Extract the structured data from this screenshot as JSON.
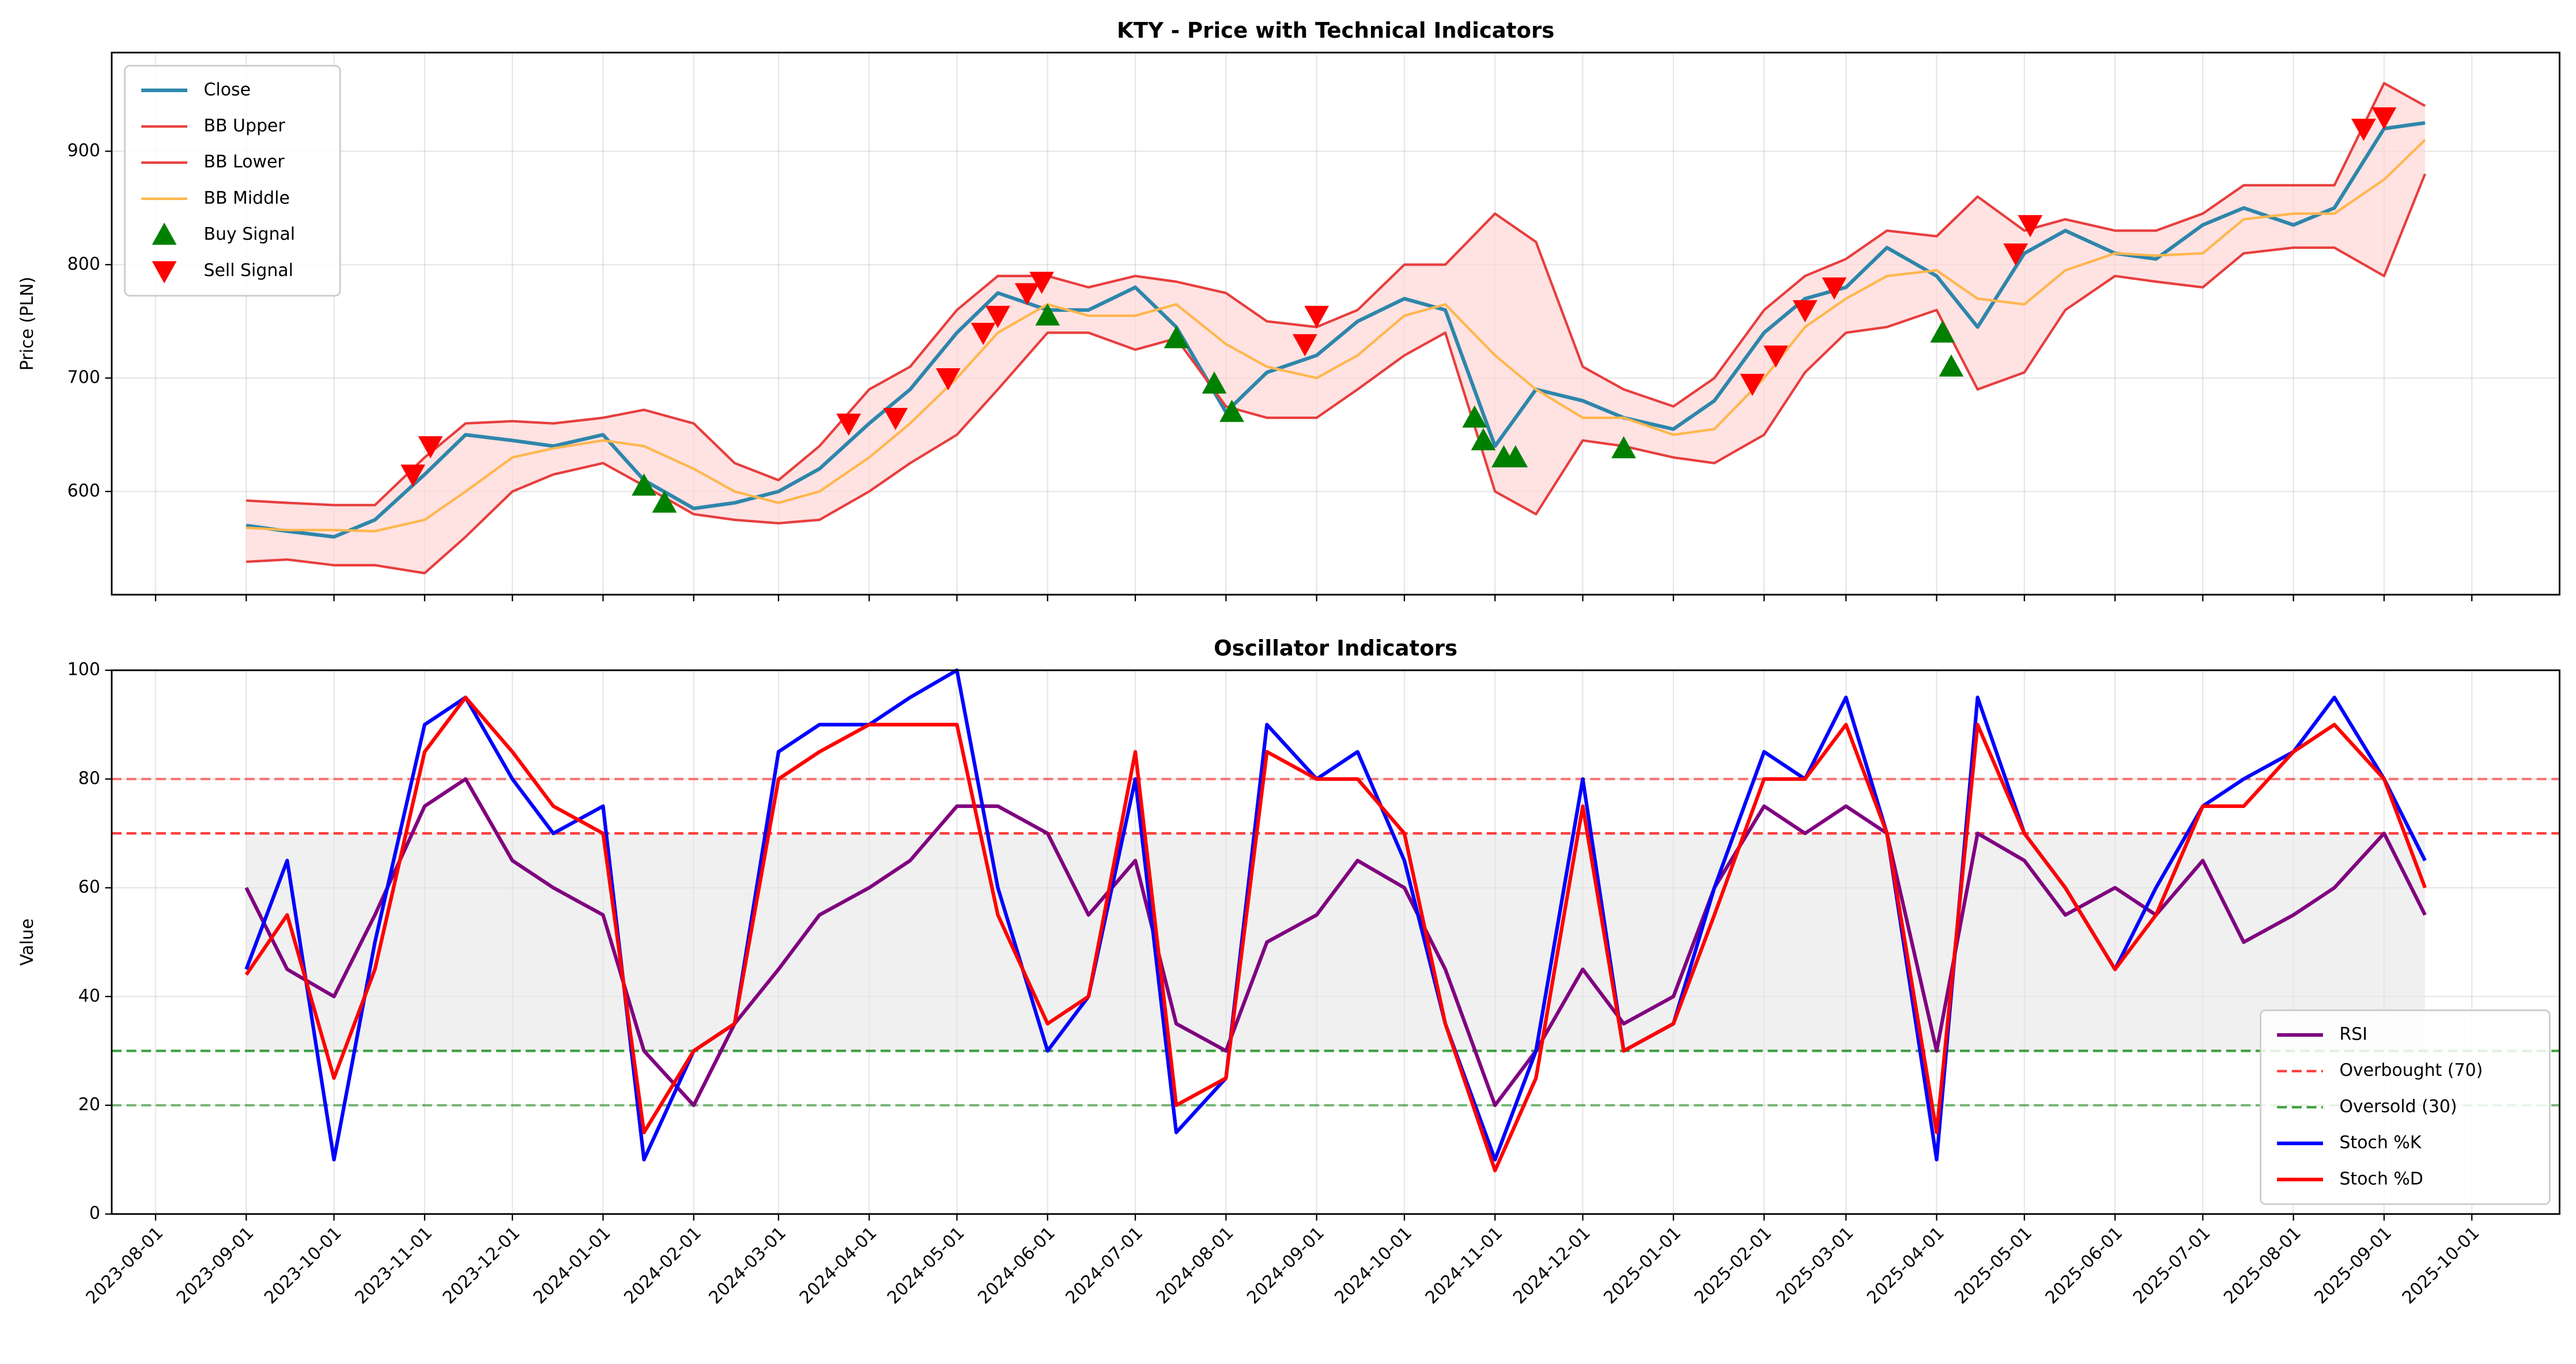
{
  "chart_data": [
    {
      "type": "line",
      "title": "KTY - Price with Technical Indicators",
      "ylabel": "Price (PLN)",
      "x": [
        "2023-09-01",
        "2023-09-15",
        "2023-10-01",
        "2023-10-15",
        "2023-11-01",
        "2023-11-15",
        "2023-12-01",
        "2023-12-15",
        "2024-01-01",
        "2024-01-15",
        "2024-02-01",
        "2024-02-15",
        "2024-03-01",
        "2024-03-15",
        "2024-04-01",
        "2024-04-15",
        "2024-05-01",
        "2024-05-15",
        "2024-06-01",
        "2024-06-15",
        "2024-07-01",
        "2024-07-15",
        "2024-08-01",
        "2024-08-15",
        "2024-09-01",
        "2024-09-15",
        "2024-10-01",
        "2024-10-15",
        "2024-11-01",
        "2024-11-15",
        "2024-12-01",
        "2024-12-15",
        "2025-01-01",
        "2025-01-15",
        "2025-02-01",
        "2025-02-15",
        "2025-03-01",
        "2025-03-15",
        "2025-04-01",
        "2025-04-15",
        "2025-05-01",
        "2025-05-15",
        "2025-06-01",
        "2025-06-15",
        "2025-07-01",
        "2025-07-15",
        "2025-08-01",
        "2025-08-15",
        "2025-09-01",
        "2025-09-15"
      ],
      "xlim": [
        "2023-07-17",
        "2025-10-31"
      ],
      "ylim": [
        509,
        987
      ],
      "yticks": [
        600,
        700,
        800,
        900
      ],
      "grid": true,
      "legend": "upper left",
      "fill_color": "#ffd6d6",
      "series": [
        {
          "name": "Close",
          "color": "#2e86ab",
          "width": 2.2,
          "values": [
            570,
            565,
            560,
            575,
            615,
            650,
            645,
            640,
            650,
            610,
            585,
            590,
            600,
            620,
            660,
            690,
            740,
            775,
            760,
            760,
            780,
            745,
            670,
            705,
            720,
            750,
            770,
            760,
            640,
            690,
            680,
            665,
            655,
            680,
            740,
            770,
            780,
            815,
            790,
            745,
            810,
            830,
            810,
            805,
            835,
            850,
            835,
            850,
            920,
            925
          ]
        },
        {
          "name": "BB Upper",
          "color": "#e83e3e",
          "width": 1.5,
          "values": [
            592,
            590,
            588,
            588,
            630,
            660,
            662,
            660,
            665,
            672,
            660,
            625,
            610,
            640,
            690,
            710,
            760,
            790,
            790,
            780,
            790,
            785,
            775,
            750,
            745,
            760,
            800,
            800,
            845,
            820,
            710,
            690,
            675,
            700,
            760,
            790,
            805,
            830,
            825,
            860,
            830,
            840,
            830,
            830,
            845,
            870,
            870,
            870,
            960,
            940
          ]
        },
        {
          "name": "BB Lower",
          "color": "#e83e3e",
          "width": 1.5,
          "values": [
            538,
            540,
            535,
            535,
            528,
            560,
            600,
            615,
            625,
            605,
            580,
            575,
            572,
            575,
            600,
            625,
            650,
            690,
            740,
            740,
            725,
            735,
            675,
            665,
            665,
            690,
            720,
            740,
            600,
            580,
            645,
            640,
            630,
            625,
            650,
            705,
            740,
            745,
            760,
            690,
            705,
            760,
            790,
            785,
            780,
            810,
            815,
            815,
            790,
            880
          ]
        },
        {
          "name": "BB Middle",
          "color": "#ffb74d",
          "width": 1.5,
          "values": [
            568,
            566,
            566,
            565,
            575,
            600,
            630,
            638,
            645,
            640,
            620,
            600,
            590,
            600,
            630,
            660,
            700,
            740,
            765,
            755,
            755,
            765,
            730,
            710,
            700,
            720,
            755,
            765,
            720,
            690,
            665,
            665,
            650,
            655,
            700,
            745,
            770,
            790,
            795,
            770,
            765,
            795,
            810,
            808,
            810,
            840,
            845,
            845,
            875,
            910
          ]
        },
        {
          "name": "Buy Signal",
          "color": "#008000",
          "marker": "triangle-up",
          "x": [
            "2024-01-15",
            "2024-01-22",
            "2024-06-01",
            "2024-07-15",
            "2024-07-28",
            "2024-08-03",
            "2024-10-25",
            "2024-10-28",
            "2024-11-04",
            "2024-11-08",
            "2024-12-15",
            "2025-04-03",
            "2025-04-06"
          ],
          "values": [
            605,
            590,
            755,
            735,
            695,
            670,
            665,
            645,
            630,
            630,
            638,
            740,
            710
          ]
        },
        {
          "name": "Sell Signal",
          "color": "#ff0000",
          "marker": "triangle-down",
          "x": [
            "2023-10-28",
            "2023-11-03",
            "2024-03-25",
            "2024-04-10",
            "2024-04-28",
            "2024-05-10",
            "2024-05-15",
            "2024-05-25",
            "2024-05-30",
            "2024-08-28",
            "2024-09-01",
            "2025-01-28",
            "2025-02-05",
            "2025-02-15",
            "2025-02-25",
            "2025-04-28",
            "2025-05-03",
            "2025-08-25",
            "2025-09-01"
          ],
          "values": [
            615,
            640,
            660,
            665,
            700,
            740,
            755,
            775,
            785,
            730,
            755,
            695,
            720,
            760,
            780,
            810,
            835,
            920,
            930
          ]
        }
      ]
    },
    {
      "type": "line",
      "title": "Oscillator Indicators",
      "ylabel": "Value",
      "x": [
        "2023-09-01",
        "2023-09-15",
        "2023-10-01",
        "2023-10-15",
        "2023-11-01",
        "2023-11-15",
        "2023-12-01",
        "2023-12-15",
        "2024-01-01",
        "2024-01-15",
        "2024-02-01",
        "2024-02-15",
        "2024-03-01",
        "2024-03-15",
        "2024-04-01",
        "2024-04-15",
        "2024-05-01",
        "2024-05-15",
        "2024-06-01",
        "2024-06-15",
        "2024-07-01",
        "2024-07-15",
        "2024-08-01",
        "2024-08-15",
        "2024-09-01",
        "2024-09-15",
        "2024-10-01",
        "2024-10-15",
        "2024-11-01",
        "2024-11-15",
        "2024-12-01",
        "2024-12-15",
        "2025-01-01",
        "2025-01-15",
        "2025-02-01",
        "2025-02-15",
        "2025-03-01",
        "2025-03-15",
        "2025-04-01",
        "2025-04-15",
        "2025-05-01",
        "2025-05-15",
        "2025-06-01",
        "2025-06-15",
        "2025-07-01",
        "2025-07-15",
        "2025-08-01",
        "2025-08-15",
        "2025-09-01",
        "2025-09-15"
      ],
      "xlim": [
        "2023-07-17",
        "2025-10-31"
      ],
      "xticks": [
        "2023-08-01",
        "2023-09-01",
        "2023-10-01",
        "2023-11-01",
        "2023-12-01",
        "2024-01-01",
        "2024-02-01",
        "2024-03-01",
        "2024-04-01",
        "2024-05-01",
        "2024-06-01",
        "2024-07-01",
        "2024-08-01",
        "2024-09-01",
        "2024-10-01",
        "2024-11-01",
        "2024-12-01",
        "2025-01-01",
        "2025-02-01",
        "2025-03-01",
        "2025-04-01",
        "2025-05-01",
        "2025-06-01",
        "2025-07-01",
        "2025-08-01",
        "2025-09-01",
        "2025-10-01"
      ],
      "ylim": [
        0,
        100
      ],
      "yticks": [
        0,
        20,
        40,
        60,
        80,
        100
      ],
      "grid": true,
      "legend": "lower right",
      "shade": {
        "from": 30,
        "to": 70,
        "color": "#e6e6e6"
      },
      "hlines": [
        {
          "name": "Overbought (70)",
          "value": 70,
          "color": "#ff0000",
          "opacity": 0.75
        },
        {
          "name": "Oversold (30)",
          "value": 30,
          "color": "#008000",
          "opacity": 0.75
        },
        {
          "value": 80,
          "color": "#ff0000",
          "opacity": 0.5
        },
        {
          "value": 20,
          "color": "#008000",
          "opacity": 0.5
        }
      ],
      "series": [
        {
          "name": "RSI",
          "color": "#800080",
          "width": 2.2,
          "values": [
            60,
            45,
            40,
            55,
            75,
            80,
            65,
            60,
            55,
            30,
            20,
            35,
            45,
            55,
            60,
            65,
            75,
            75,
            70,
            55,
            65,
            35,
            30,
            50,
            55,
            65,
            60,
            45,
            20,
            30,
            45,
            35,
            40,
            60,
            75,
            70,
            75,
            70,
            30,
            70,
            65,
            55,
            60,
            55,
            65,
            50,
            55,
            60,
            70,
            55
          ]
        },
        {
          "name": "Stoch %K",
          "color": "#0000ff",
          "width": 2.2,
          "values": [
            45,
            65,
            10,
            50,
            90,
            95,
            80,
            70,
            75,
            10,
            30,
            35,
            85,
            90,
            90,
            95,
            100,
            60,
            30,
            40,
            80,
            15,
            25,
            90,
            80,
            85,
            65,
            35,
            10,
            30,
            80,
            30,
            35,
            60,
            85,
            80,
            95,
            70,
            10,
            95,
            70,
            60,
            45,
            60,
            75,
            80,
            85,
            95,
            80,
            65
          ]
        },
        {
          "name": "Stoch %D",
          "color": "#ff0000",
          "width": 2.2,
          "values": [
            44,
            55,
            25,
            45,
            85,
            95,
            85,
            75,
            70,
            15,
            30,
            35,
            80,
            85,
            90,
            90,
            90,
            55,
            35,
            40,
            85,
            20,
            25,
            85,
            80,
            80,
            70,
            35,
            8,
            25,
            75,
            30,
            35,
            55,
            80,
            80,
            90,
            70,
            15,
            90,
            70,
            60,
            45,
            55,
            75,
            75,
            85,
            90,
            80,
            60
          ]
        }
      ]
    }
  ]
}
